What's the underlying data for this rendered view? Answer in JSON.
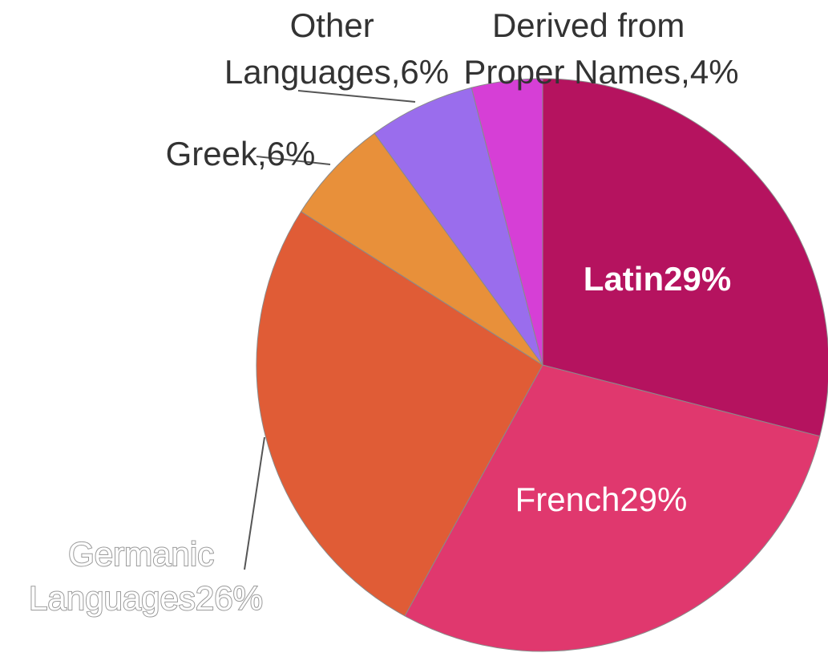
{
  "chart_data": {
    "type": "pie",
    "title": "",
    "start_angle_deg": 0,
    "direction": "clockwise",
    "slices": [
      {
        "label": "Latin",
        "value": 29,
        "display": "Latin29%",
        "color": "#b5135f"
      },
      {
        "label": "French",
        "value": 29,
        "display": "French29%",
        "color": "#e0386e"
      },
      {
        "label": "Germanic Languages",
        "value": 26,
        "display_lines": [
          "Germanic",
          "Languages26%"
        ],
        "color": "#e05c36"
      },
      {
        "label": "Greek",
        "value": 6,
        "display": "Greek,6%",
        "color": "#e8903a"
      },
      {
        "label": "Other Languages",
        "value": 6,
        "display_lines": [
          "Other",
          "Languages,6%"
        ],
        "color": "#9a6ded"
      },
      {
        "label": "Derived from Proper Names",
        "value": 4,
        "display_lines": [
          "Derived from",
          "Proper Names,4%"
        ],
        "color": "#d63fd6"
      }
    ]
  }
}
